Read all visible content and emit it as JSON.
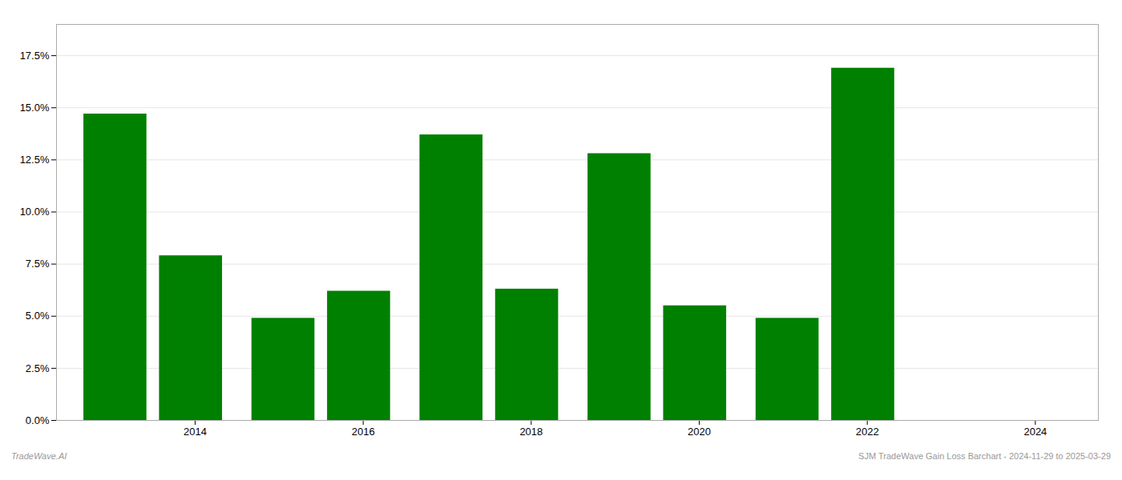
{
  "chart_data": {
    "type": "bar",
    "x": [
      2013,
      2013.9,
      2015,
      2015.9,
      2017,
      2017.9,
      2019,
      2019.9,
      2021,
      2021.9,
      2023
    ],
    "values": [
      0.147,
      0.079,
      0.049,
      0.062,
      0.137,
      0.063,
      0.128,
      0.055,
      0.049,
      0.169,
      0.0
    ],
    "color": "#008000",
    "xlim": [
      2012.3,
      2024.7
    ],
    "xticks": [
      {
        "value": 2013.95,
        "label": "2014"
      },
      {
        "value": 2015.95,
        "label": "2016"
      },
      {
        "value": 2017.95,
        "label": "2018"
      },
      {
        "value": 2019.95,
        "label": "2020"
      },
      {
        "value": 2021.95,
        "label": "2022"
      },
      {
        "value": 2023.95,
        "label": "2024"
      }
    ],
    "ylim": [
      0,
      0.19
    ],
    "yticks": [
      {
        "value": 0.0,
        "label": "0.0%"
      },
      {
        "value": 0.025,
        "label": "2.5%"
      },
      {
        "value": 0.05,
        "label": "5.0%"
      },
      {
        "value": 0.075,
        "label": "7.5%"
      },
      {
        "value": 0.1,
        "label": "10.0%"
      },
      {
        "value": 0.125,
        "label": "12.5%"
      },
      {
        "value": 0.15,
        "label": "15.0%"
      },
      {
        "value": 0.175,
        "label": "17.5%"
      }
    ],
    "grid": true,
    "annotations": [
      "TradeWave.AI",
      "SJM TradeWave Gain Loss Barchart - 2024-11-29 to 2025-03-29"
    ]
  }
}
